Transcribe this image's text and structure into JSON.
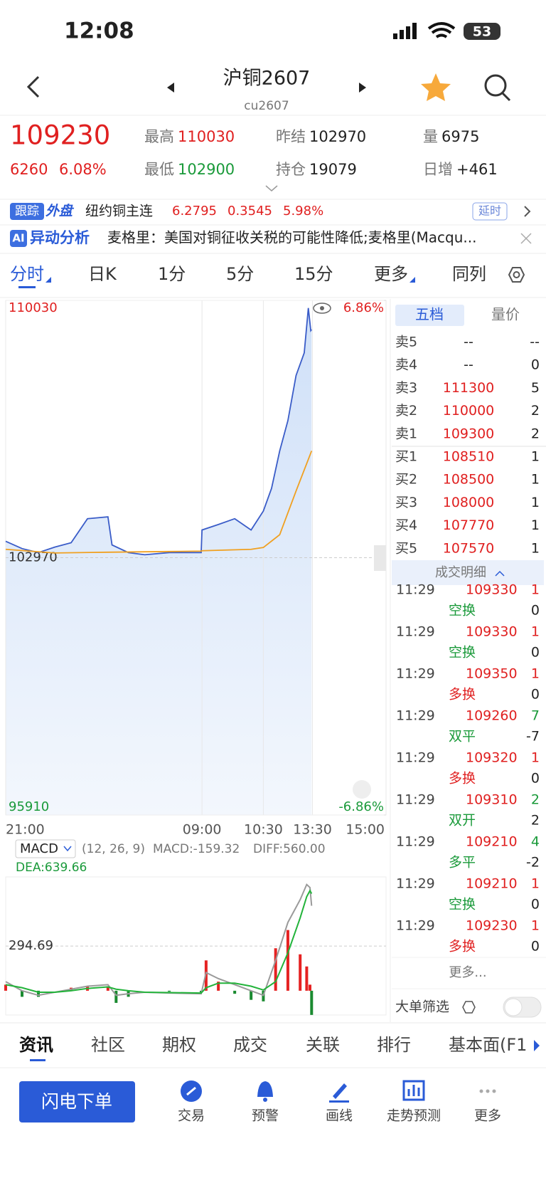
{
  "status_bar": {
    "time": "12:08",
    "battery": "53"
  },
  "header": {
    "title": "沪铜2607",
    "code": "cu2607"
  },
  "quote": {
    "price": "109230",
    "change": "6260",
    "change_pct": "6.08%",
    "stats": [
      {
        "label": "最高",
        "value": "110030"
      },
      {
        "label": "昨结",
        "value": "102970"
      },
      {
        "label": "量",
        "value": "6975"
      },
      {
        "label": "最低",
        "value": "102900"
      },
      {
        "label": "持仓",
        "value": "19079"
      },
      {
        "label": "日增",
        "value": "+461"
      }
    ]
  },
  "ticker": {
    "badge": "跟踪",
    "market": "外盘",
    "name": "纽约铜主连",
    "price": "6.2795",
    "change": "0.3545",
    "change_pct": "5.98%",
    "status": "延时"
  },
  "alert": {
    "badge": "AI",
    "title": "异动分析",
    "text": "麦格里：美国对铜征收关税的可能性降低;麦格里(Macqu..."
  },
  "tabs": [
    "分时",
    "日K",
    "1分",
    "5分",
    "15分",
    "更多",
    "同列"
  ],
  "chart_data": [
    {
      "type": "line",
      "xlim": [
        0,
        465
      ],
      "xticks": [
        {
          "value": 0,
          "label": "21:00"
        },
        {
          "value": 240,
          "label": "09:00"
        },
        {
          "value": 315,
          "label": "10:30"
        },
        {
          "value": 375,
          "label": "13:30"
        },
        {
          "value": 465,
          "label": "15:00"
        }
      ],
      "ylim": [
        95910,
        110030
      ],
      "yticks": [
        110030,
        102970,
        95910
      ],
      "y2lim": [
        -6.86,
        6.86
      ],
      "y2ticks": [
        {
          "value": 6.86,
          "label": "6.86%"
        },
        {
          "value": -6.86,
          "label": "-6.86%"
        }
      ],
      "series": [
        {
          "color": "#3a5cc8",
          "x": [
            0,
            20,
            40,
            60,
            80,
            100,
            125,
            130,
            150,
            170,
            200,
            239,
            240,
            260,
            280,
            300,
            315,
            325,
            335,
            345,
            355,
            365,
            370,
            373,
            374
          ],
          "values": [
            103420,
            103220,
            103110,
            103260,
            103380,
            104040,
            104090,
            103320,
            103110,
            103050,
            103110,
            103110,
            103730,
            103880,
            104040,
            103730,
            104250,
            104870,
            105900,
            106730,
            107970,
            108590,
            109820,
            109200,
            109230
          ]
        },
        {
          "color": "#f0a020",
          "x": [
            0,
            60,
            125,
            200,
            239,
            240,
            300,
            315,
            335,
            355,
            374
          ],
          "values": [
            103200,
            103100,
            103120,
            103140,
            103150,
            103160,
            103200,
            103250,
            103600,
            104800,
            105900
          ]
        }
      ]
    },
    {
      "type": "macd",
      "xlim": [
        0,
        465
      ],
      "ylim": [
        -160,
        750
      ],
      "yticks": [
        294.69
      ],
      "x": [
        0,
        20,
        40,
        60,
        80,
        100,
        125,
        135,
        150,
        170,
        200,
        239,
        245,
        260,
        280,
        300,
        315,
        330,
        345,
        360,
        368,
        372,
        374
      ],
      "series": [
        {
          "color": "#9a9a9a",
          "values": [
            60,
            0,
            -30,
            -10,
            10,
            30,
            40,
            -30,
            -20,
            -10,
            -15,
            -20,
            120,
            80,
            40,
            0,
            -30,
            200,
            450,
            600,
            700,
            680,
            560
          ]
        },
        {
          "color": "#22b33a",
          "values": [
            40,
            20,
            -10,
            -10,
            0,
            15,
            25,
            10,
            0,
            -10,
            -12,
            -15,
            20,
            50,
            50,
            30,
            5,
            60,
            250,
            480,
            620,
            660,
            639.66
          ]
        }
      ],
      "histogram": {
        "up_color": "#e52222",
        "down_color": "#1a8a30",
        "values": [
          40,
          -40,
          -40,
          0,
          20,
          30,
          30,
          -80,
          -40,
          0,
          -6,
          -10,
          200,
          60,
          -20,
          -60,
          -70,
          280,
          400,
          240,
          160,
          40,
          -159.32
        ]
      }
    }
  ],
  "macd_header": {
    "name": "MACD",
    "params": "(12, 26, 9)",
    "macd": "MACD:-159.32",
    "diff": "DIFF:560.00",
    "dea": "DEA:639.66"
  },
  "order_book": {
    "tabs": [
      "五档",
      "量价"
    ],
    "rows": [
      [
        "卖5",
        "--",
        "--"
      ],
      [
        "卖4",
        "--",
        "0"
      ],
      [
        "卖3",
        "111300",
        "5"
      ],
      [
        "卖2",
        "110000",
        "2"
      ],
      [
        "卖1",
        "109300",
        "2"
      ],
      [
        "买1",
        "108510",
        "1"
      ],
      [
        "买2",
        "108500",
        "1"
      ],
      [
        "买3",
        "108000",
        "1"
      ],
      [
        "买4",
        "107770",
        "1"
      ],
      [
        "买5",
        "107570",
        "1"
      ]
    ]
  },
  "trades": {
    "title": "成交明细",
    "more": "更多...",
    "filter": "大单筛选",
    "rows": [
      {
        "time": "11:29",
        "price": "109330",
        "volume": "1",
        "type": "空换",
        "type_volume": "0",
        "volume_color": "#e02020",
        "type_color": "#1a9a3a"
      },
      {
        "time": "11:29",
        "price": "109330",
        "volume": "1",
        "type": "空换",
        "type_volume": "0",
        "volume_color": "#e02020",
        "type_color": "#1a9a3a"
      },
      {
        "time": "11:29",
        "price": "109350",
        "volume": "1",
        "type": "多换",
        "type_volume": "0",
        "volume_color": "#e02020",
        "type_color": "#e02020"
      },
      {
        "time": "11:29",
        "price": "109260",
        "volume": "7",
        "type": "双平",
        "type_volume": "-7",
        "volume_color": "#1a9a3a",
        "type_color": "#1a9a3a"
      },
      {
        "time": "11:29",
        "price": "109320",
        "volume": "1",
        "type": "多换",
        "type_volume": "0",
        "volume_color": "#e02020",
        "type_color": "#e02020"
      },
      {
        "time": "11:29",
        "price": "109310",
        "volume": "2",
        "type": "双开",
        "type_volume": "2",
        "volume_color": "#1a9a3a",
        "type_color": "#1a9a3a"
      },
      {
        "time": "11:29",
        "price": "109210",
        "volume": "4",
        "type": "多平",
        "type_volume": "-2",
        "volume_color": "#1a9a3a",
        "type_color": "#1a9a3a"
      },
      {
        "time": "11:29",
        "price": "109210",
        "volume": "1",
        "type": "空换",
        "type_volume": "0",
        "volume_color": "#e02020",
        "type_color": "#1a9a3a"
      },
      {
        "time": "11:29",
        "price": "109230",
        "volume": "1",
        "type": "多换",
        "type_volume": "0",
        "volume_color": "#e02020",
        "type_color": "#e02020"
      }
    ]
  },
  "bottom_tabs": [
    "资讯",
    "社区",
    "期权",
    "成交",
    "关联",
    "排行",
    "基本面(F1"
  ],
  "actions": {
    "primary": "闪电下单",
    "items": [
      "交易",
      "预警",
      "画线",
      "走势预测",
      "更多"
    ]
  }
}
